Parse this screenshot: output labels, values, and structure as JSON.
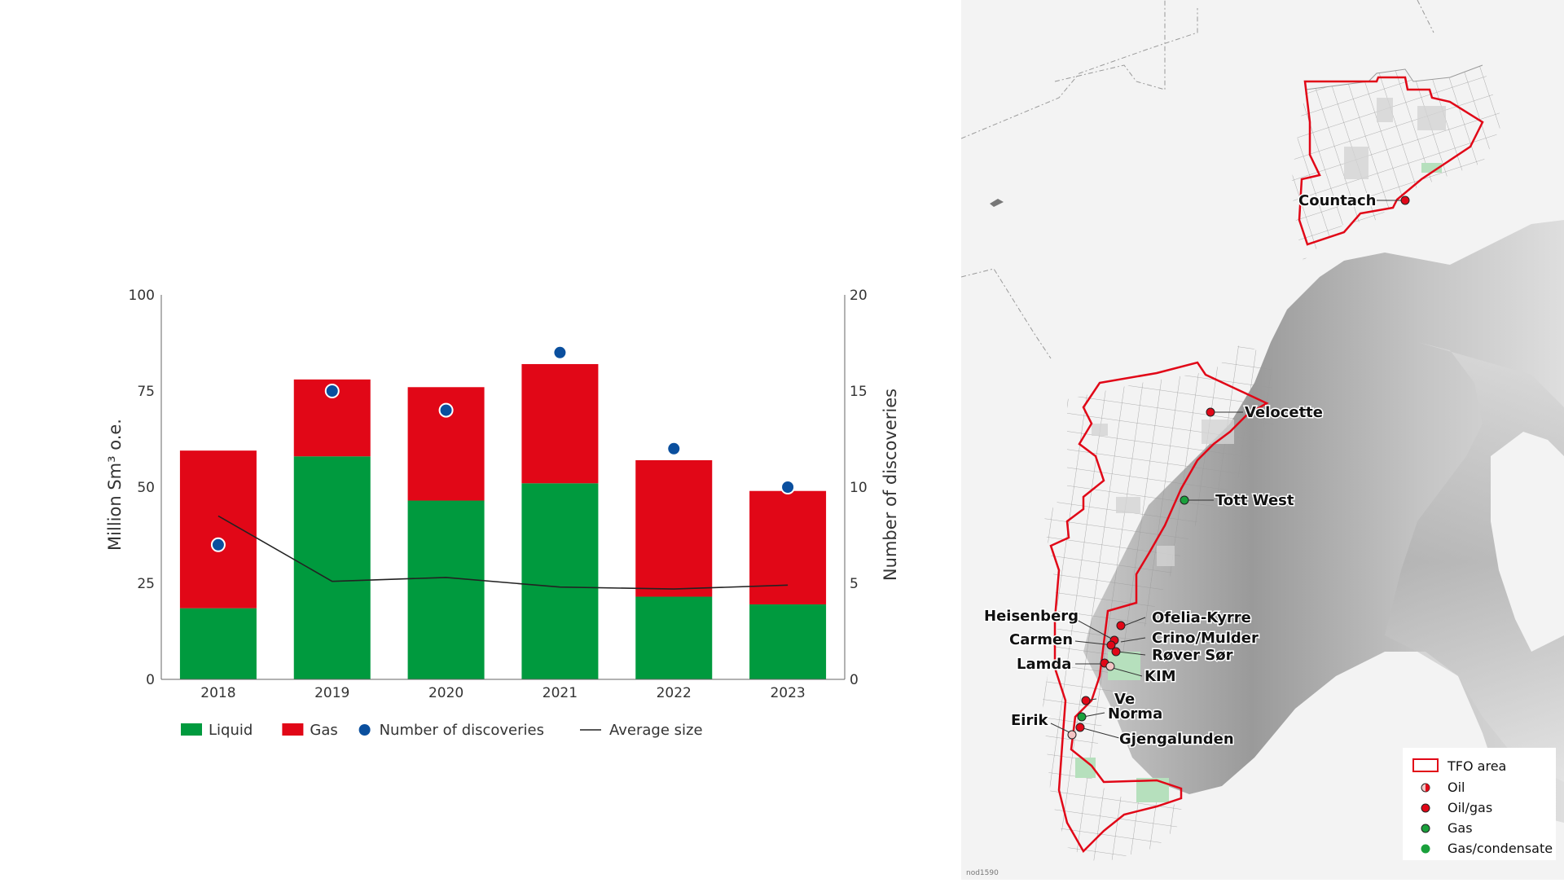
{
  "chart_data": {
    "type": "bar",
    "stacked": true,
    "categories": [
      "2018",
      "2019",
      "2020",
      "2021",
      "2022",
      "2023"
    ],
    "series": [
      {
        "name": "Liquid",
        "kind": "bar",
        "axis": "left",
        "color": "#009a3e",
        "values": [
          18.5,
          58,
          46.5,
          51,
          21.5,
          19.5
        ]
      },
      {
        "name": "Gas",
        "kind": "bar",
        "axis": "left",
        "color": "#e10717",
        "values": [
          41,
          20,
          29.5,
          31,
          35.5,
          29.5
        ]
      },
      {
        "name": "Number of discoveries",
        "kind": "scatter",
        "axis": "right",
        "color": "#0a4f9e",
        "values": [
          7,
          15,
          14,
          17,
          12,
          10
        ]
      },
      {
        "name": "Average size",
        "kind": "line",
        "axis": "right",
        "color": "#222222",
        "values": [
          8.5,
          5.1,
          5.3,
          4.8,
          4.7,
          4.9
        ]
      }
    ],
    "ylabel": "Million Sm³ o.e.",
    "ylabel_right": "Number of discoveries",
    "ylim": [
      0,
      100
    ],
    "ylim_right": [
      0,
      20
    ],
    "yticks": [
      "0",
      "25",
      "50",
      "75",
      "100"
    ],
    "yticks_right": [
      "0",
      "5",
      "10",
      "15",
      "20"
    ],
    "grid": false,
    "legend_position": "bottom"
  },
  "map": {
    "labels": {
      "countach": "Countach",
      "velocette": "Velocette",
      "tott_west": "Tott West",
      "heisenberg": "Heisenberg",
      "ofelia_kyrre": "Ofelia-Kyrre",
      "carmen": "Carmen",
      "crino_mulder": "Crino/Mulder",
      "rover_sor": "Røver Sør",
      "lamda": "Lamda",
      "kim": "KIM",
      "ve": "Ve",
      "norma": "Norma",
      "eirik": "Eirik",
      "gjengalunden": "Gjengalunden"
    },
    "legend": {
      "tfo_area": "TFO area",
      "oil": "Oil",
      "oil_gas": "Oil/gas",
      "gas": "Gas",
      "gas_condensate": "Gas/condensate"
    },
    "credit": "nod1590",
    "colors": {
      "tfo_outline": "#e10717",
      "oil": "#e10717",
      "gas": "#1aa03c",
      "land": "#a8a8a8",
      "sea": "#f4f4f4"
    }
  }
}
